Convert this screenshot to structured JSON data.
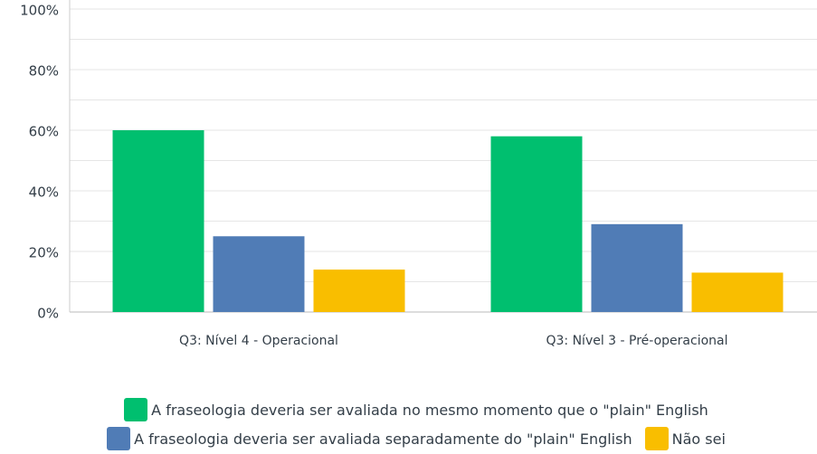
{
  "chart_data": {
    "type": "bar",
    "categories": [
      "Q3: Nível 4 - Operacional",
      "Q3: Nível 3 - Pré-operacional"
    ],
    "series": [
      {
        "name": "A fraseologia deveria ser avaliada no mesmo momento que o \"plain\" English",
        "color": "#00bf6f",
        "values": [
          60,
          58
        ]
      },
      {
        "name": "A fraseologia deveria ser avaliada separadamente do \"plain\" English",
        "color": "#507cb6",
        "values": [
          25,
          29
        ]
      },
      {
        "name": "Não sei",
        "color": "#f9be00",
        "values": [
          14,
          13
        ]
      }
    ],
    "ylim": [
      0,
      100
    ],
    "yticks": [
      {
        "value": 0,
        "label": "0%"
      },
      {
        "value": 20,
        "label": "20%"
      },
      {
        "value": 40,
        "label": "40%"
      },
      {
        "value": 60,
        "label": "60%"
      },
      {
        "value": 80,
        "label": "80%"
      },
      {
        "value": 100,
        "label": "100%"
      }
    ],
    "minor_yticks": [
      10,
      30,
      50,
      70,
      90
    ],
    "grid": true
  }
}
